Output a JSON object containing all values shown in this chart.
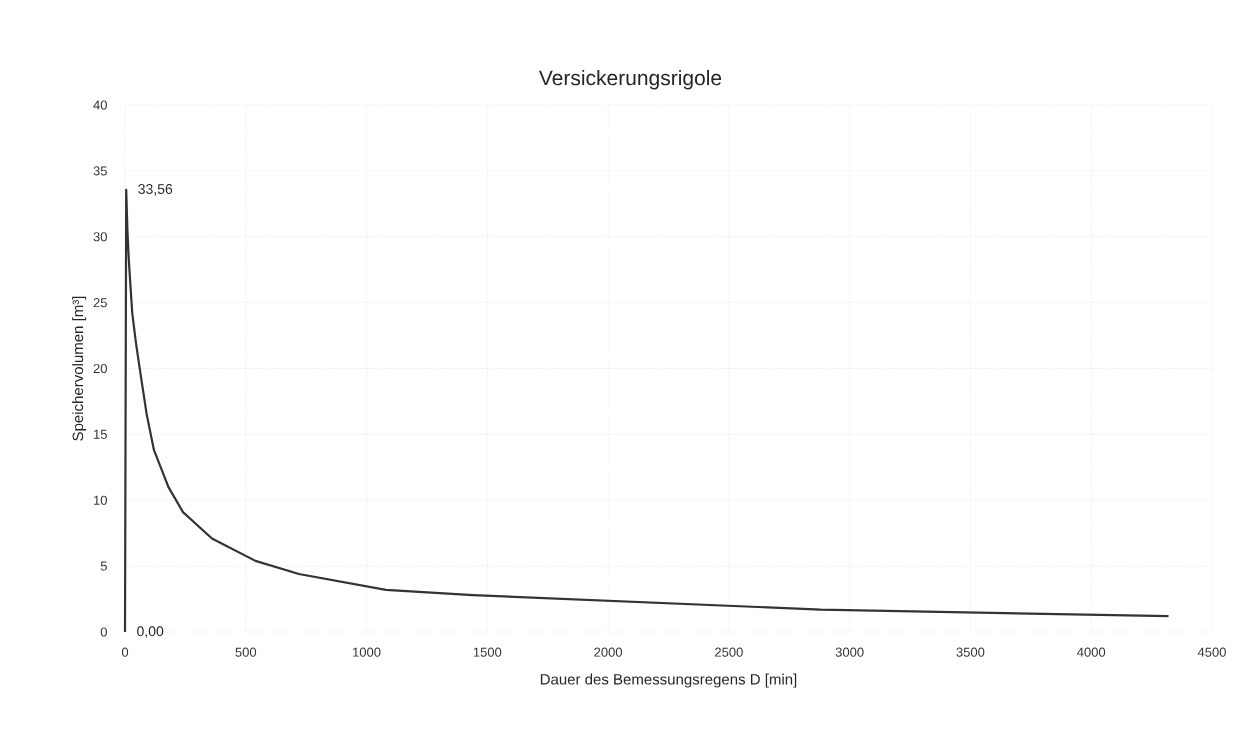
{
  "chart_data": {
    "type": "line",
    "title": "Versickerungsrigole",
    "xlabel": "Dauer des Bemessungsregens D [min]",
    "ylabel": "Speichervolumen [m³]",
    "x": [
      0,
      5,
      10,
      15,
      20,
      30,
      45,
      60,
      90,
      120,
      180,
      240,
      360,
      540,
      720,
      1080,
      1440,
      2880,
      4320
    ],
    "series": [
      {
        "color": "#333333",
        "values": [
          0,
          33.56,
          30.5,
          28.5,
          27,
          24.2,
          22,
          20.1,
          16.5,
          13.8,
          11.0,
          9.1,
          7.1,
          5.4,
          4.4,
          3.2,
          2.8,
          1.7,
          1.2
        ],
        "value_labels": [
          "0,00",
          "33,56",
          null,
          null,
          null,
          null,
          null,
          null,
          null,
          null,
          null,
          null,
          null,
          null,
          null,
          null,
          null,
          null,
          null
        ]
      }
    ],
    "xlim": [
      0,
      4500
    ],
    "ylim": [
      0,
      40
    ],
    "xticks": [
      0,
      500,
      1000,
      1500,
      2000,
      2500,
      3000,
      3500,
      4000,
      4500
    ],
    "yticks": [
      0,
      5,
      10,
      15,
      20,
      25,
      30,
      35,
      40
    ],
    "grid": true,
    "marker": "none",
    "line_style": "solid"
  }
}
